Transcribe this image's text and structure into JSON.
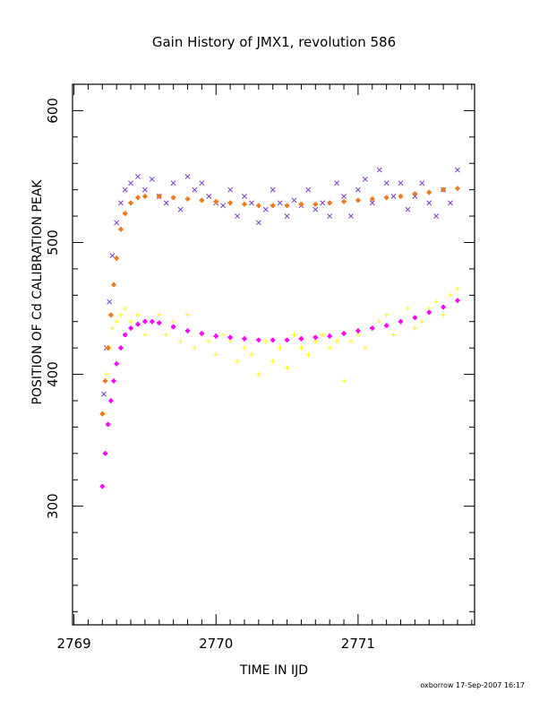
{
  "chart_data": {
    "type": "scatter",
    "title": "Gain History of JMX1, revolution 586",
    "xlabel": "TIME IN IJD",
    "ylabel": "POSITION OF Cd CALIBRATION PEAK",
    "xlim": [
      2768.99,
      2771.82
    ],
    "ylim": [
      210,
      620
    ],
    "x_ticks": [
      2769,
      2770,
      2771
    ],
    "y_ticks": [
      300,
      400,
      500,
      600
    ],
    "grid": false,
    "series": [
      {
        "marker": "x",
        "color": "#7a3cc8",
        "x": [
          2769.21,
          2769.23,
          2769.25,
          2769.27,
          2769.3,
          2769.33,
          2769.36,
          2769.4,
          2769.45,
          2769.5,
          2769.55,
          2769.6,
          2769.65,
          2769.7,
          2769.75,
          2769.8,
          2769.85,
          2769.9,
          2769.95,
          2770.0,
          2770.05,
          2770.1,
          2770.15,
          2770.2,
          2770.25,
          2770.3,
          2770.35,
          2770.4,
          2770.45,
          2770.5,
          2770.55,
          2770.6,
          2770.65,
          2770.7,
          2770.75,
          2770.8,
          2770.85,
          2770.9,
          2770.95,
          2771.0,
          2771.05,
          2771.1,
          2771.15,
          2771.2,
          2771.25,
          2771.3,
          2771.35,
          2771.4,
          2771.45,
          2771.5,
          2771.55,
          2771.6,
          2771.65,
          2771.7
        ],
        "y": [
          385,
          420,
          455,
          490,
          515,
          530,
          540,
          545,
          550,
          540,
          548,
          535,
          530,
          545,
          525,
          550,
          540,
          545,
          535,
          530,
          528,
          540,
          520,
          535,
          530,
          515,
          525,
          540,
          530,
          520,
          532,
          528,
          540,
          525,
          530,
          520,
          545,
          535,
          520,
          540,
          548,
          530,
          555,
          545,
          535,
          545,
          525,
          535,
          545,
          530,
          520,
          540,
          530,
          555
        ]
      },
      {
        "marker": "+",
        "color": "#ffff00",
        "x": [
          2769.21,
          2769.23,
          2769.25,
          2769.27,
          2769.3,
          2769.33,
          2769.36,
          2769.4,
          2769.45,
          2769.5,
          2769.55,
          2769.6,
          2769.65,
          2769.7,
          2769.75,
          2769.8,
          2769.85,
          2769.9,
          2769.95,
          2770.0,
          2770.05,
          2770.1,
          2770.15,
          2770.2,
          2770.25,
          2770.3,
          2770.35,
          2770.4,
          2770.45,
          2770.5,
          2770.55,
          2770.6,
          2770.65,
          2770.7,
          2770.75,
          2770.8,
          2770.85,
          2770.9,
          2770.95,
          2771.0,
          2771.05,
          2771.1,
          2771.15,
          2771.2,
          2771.25,
          2771.3,
          2771.35,
          2771.4,
          2771.45,
          2771.5,
          2771.55,
          2771.6,
          2771.65,
          2771.7
        ],
        "y": [
          370,
          400,
          420,
          435,
          440,
          445,
          450,
          440,
          445,
          430,
          440,
          445,
          430,
          440,
          425,
          445,
          420,
          430,
          425,
          415,
          430,
          425,
          410,
          420,
          415,
          400,
          425,
          410,
          420,
          405,
          430,
          420,
          415,
          425,
          430,
          420,
          425,
          395,
          425,
          430,
          420,
          435,
          440,
          445,
          430,
          440,
          450,
          435,
          440,
          450,
          455,
          445,
          460,
          465
        ]
      },
      {
        "marker": "+",
        "color": "#f07818",
        "x": [
          2769.2,
          2769.22,
          2769.24,
          2769.26,
          2769.28,
          2769.3,
          2769.33,
          2769.36,
          2769.4,
          2769.45,
          2769.5,
          2769.6,
          2769.7,
          2769.8,
          2769.9,
          2770.0,
          2770.1,
          2770.2,
          2770.3,
          2770.4,
          2770.5,
          2770.6,
          2770.7,
          2770.8,
          2770.9,
          2771.0,
          2771.1,
          2771.2,
          2771.3,
          2771.4,
          2771.5,
          2771.6,
          2771.7
        ],
        "y": [
          370,
          395,
          420,
          445,
          468,
          488,
          510,
          522,
          530,
          534,
          535,
          535,
          534,
          533,
          532,
          531,
          530,
          529,
          528,
          528,
          528,
          529,
          529,
          530,
          531,
          532,
          533,
          534,
          535,
          537,
          538,
          540,
          541
        ]
      },
      {
        "marker": "+",
        "color": "#ff00ff",
        "x": [
          2769.2,
          2769.22,
          2769.24,
          2769.26,
          2769.28,
          2769.3,
          2769.33,
          2769.36,
          2769.4,
          2769.45,
          2769.5,
          2769.55,
          2769.6,
          2769.7,
          2769.8,
          2769.9,
          2770.0,
          2770.1,
          2770.2,
          2770.3,
          2770.4,
          2770.5,
          2770.6,
          2770.7,
          2770.8,
          2770.9,
          2771.0,
          2771.1,
          2771.2,
          2771.3,
          2771.4,
          2771.5,
          2771.6,
          2771.7
        ],
        "y": [
          315,
          340,
          362,
          380,
          395,
          408,
          420,
          430,
          435,
          438,
          440,
          440,
          439,
          436,
          433,
          431,
          429,
          428,
          427,
          426,
          426,
          426,
          427,
          428,
          429,
          431,
          433,
          435,
          437,
          440,
          443,
          447,
          451,
          456
        ]
      }
    ]
  },
  "footer": "oxborrow 17-Sep-2007 16:17"
}
